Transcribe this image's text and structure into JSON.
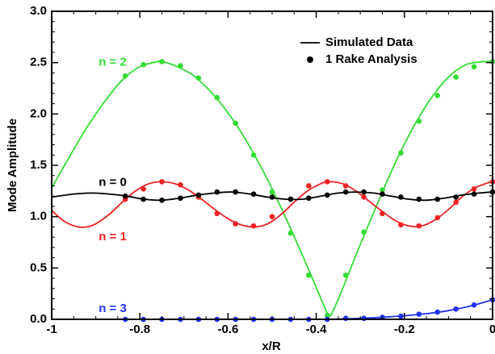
{
  "chart_data": {
    "type": "line",
    "xlabel": "x/R",
    "ylabel": "Mode Amplitude",
    "xlim": [
      -1,
      0
    ],
    "ylim": [
      0,
      3
    ],
    "xticks": [
      "-1",
      "-0.8",
      "-0.6",
      "-0.4",
      "-0.2",
      "0"
    ],
    "yticks": [
      "0.0",
      "0.5",
      "1.0",
      "1.5",
      "2.0",
      "2.5",
      "3.0"
    ],
    "legend": {
      "placement": "top-right",
      "entries": [
        {
          "label": "Simulated Data",
          "marker": "line",
          "color": "#000000"
        },
        {
          "label": "1 Rake Analysis",
          "marker": "dot",
          "color": "#000000"
        }
      ]
    },
    "series": [
      {
        "name": "n = 2",
        "color": "#33dd33",
        "points_x": [
          -0.833,
          -0.792,
          -0.75,
          -0.708,
          -0.667,
          -0.625,
          -0.583,
          -0.542,
          -0.5,
          -0.458,
          -0.417,
          -0.375,
          -0.333,
          -0.292,
          -0.25,
          -0.208,
          -0.167,
          -0.125,
          -0.083,
          -0.042,
          0.0
        ],
        "points_y": [
          2.37,
          2.48,
          2.51,
          2.47,
          2.35,
          2.16,
          1.91,
          1.6,
          1.24,
          0.84,
          0.43,
          0.04,
          0.43,
          0.85,
          1.26,
          1.62,
          1.93,
          2.18,
          2.36,
          2.46,
          2.51
        ],
        "curve_x": [
          -1.0,
          -0.96,
          -0.92,
          -0.88,
          -0.84,
          -0.8,
          -0.76,
          -0.75,
          -0.72,
          -0.68,
          -0.64,
          -0.6,
          -0.56,
          -0.52,
          -0.48,
          -0.44,
          -0.4,
          -0.38,
          -0.37,
          -0.36,
          -0.34,
          -0.3,
          -0.26,
          -0.22,
          -0.18,
          -0.14,
          -0.1,
          -0.06,
          -0.02,
          0.0
        ],
        "curve_y": [
          1.28,
          1.58,
          1.87,
          2.12,
          2.33,
          2.46,
          2.51,
          2.51,
          2.47,
          2.38,
          2.22,
          2.01,
          1.75,
          1.44,
          1.09,
          0.71,
          0.31,
          0.11,
          0.03,
          0.1,
          0.3,
          0.73,
          1.14,
          1.53,
          1.87,
          2.15,
          2.36,
          2.48,
          2.51,
          2.51
        ],
        "label_x": -0.83,
        "label_y": 2.5
      },
      {
        "name": "n = 1",
        "color": "#ee2222",
        "points_x": [
          -0.833,
          -0.792,
          -0.75,
          -0.708,
          -0.667,
          -0.625,
          -0.583,
          -0.542,
          -0.5,
          -0.458,
          -0.417,
          -0.375,
          -0.333,
          -0.292,
          -0.25,
          -0.208,
          -0.167,
          -0.125,
          -0.083,
          -0.042,
          0.0
        ],
        "points_y": [
          1.17,
          1.27,
          1.34,
          1.31,
          1.19,
          1.03,
          0.93,
          0.91,
          1.0,
          1.17,
          1.3,
          1.34,
          1.3,
          1.19,
          1.03,
          0.92,
          0.91,
          0.99,
          1.14,
          1.27,
          1.34
        ],
        "curve_x": [
          -1.0,
          -0.97,
          -0.94,
          -0.92,
          -0.9,
          -0.87,
          -0.84,
          -0.81,
          -0.78,
          -0.75,
          -0.72,
          -0.69,
          -0.66,
          -0.63,
          -0.6,
          -0.57,
          -0.54,
          -0.51,
          -0.48,
          -0.45,
          -0.42,
          -0.39,
          -0.37,
          -0.34,
          -0.31,
          -0.28,
          -0.25,
          -0.22,
          -0.19,
          -0.16,
          -0.13,
          -0.1,
          -0.07,
          -0.04,
          -0.01,
          0.0
        ],
        "curve_y": [
          1.06,
          0.95,
          0.9,
          0.9,
          0.93,
          1.02,
          1.14,
          1.25,
          1.32,
          1.34,
          1.32,
          1.26,
          1.17,
          1.07,
          0.98,
          0.92,
          0.9,
          0.93,
          1.02,
          1.14,
          1.25,
          1.32,
          1.34,
          1.32,
          1.25,
          1.15,
          1.05,
          0.96,
          0.91,
          0.91,
          0.97,
          1.07,
          1.19,
          1.28,
          1.33,
          1.34
        ],
        "label_x": -0.83,
        "label_y": 0.8
      },
      {
        "name": "n = 0",
        "color": "#000000",
        "points_x": [
          -0.833,
          -0.792,
          -0.75,
          -0.708,
          -0.667,
          -0.625,
          -0.583,
          -0.542,
          -0.5,
          -0.458,
          -0.417,
          -0.375,
          -0.333,
          -0.292,
          -0.25,
          -0.208,
          -0.167,
          -0.125,
          -0.083,
          -0.042,
          0.0
        ],
        "points_y": [
          1.2,
          1.17,
          1.16,
          1.18,
          1.21,
          1.24,
          1.24,
          1.22,
          1.19,
          1.17,
          1.18,
          1.21,
          1.24,
          1.24,
          1.22,
          1.19,
          1.17,
          1.17,
          1.19,
          1.22,
          1.24
        ],
        "curve_x": [
          -1.0,
          -0.95,
          -0.91,
          -0.87,
          -0.83,
          -0.79,
          -0.75,
          -0.71,
          -0.67,
          -0.63,
          -0.59,
          -0.55,
          -0.51,
          -0.47,
          -0.43,
          -0.39,
          -0.35,
          -0.31,
          -0.27,
          -0.23,
          -0.19,
          -0.15,
          -0.11,
          -0.07,
          -0.03,
          0.0
        ],
        "curve_y": [
          1.19,
          1.22,
          1.23,
          1.22,
          1.2,
          1.17,
          1.16,
          1.18,
          1.21,
          1.23,
          1.24,
          1.22,
          1.19,
          1.17,
          1.17,
          1.2,
          1.23,
          1.24,
          1.23,
          1.2,
          1.17,
          1.16,
          1.18,
          1.21,
          1.23,
          1.24
        ],
        "label_x": -0.83,
        "label_y": 1.33
      },
      {
        "name": "n = 3",
        "color": "#2233ee",
        "points_x": [
          -0.833,
          -0.792,
          -0.75,
          -0.708,
          -0.667,
          -0.625,
          -0.583,
          -0.542,
          -0.5,
          -0.458,
          -0.417,
          -0.375,
          -0.333,
          -0.292,
          -0.25,
          -0.208,
          -0.167,
          -0.125,
          -0.083,
          -0.042,
          0.0
        ],
        "points_y": [
          0.0,
          0.0,
          0.0,
          0.0,
          0.0,
          0.0,
          0.0,
          0.0,
          0.0,
          0.0,
          0.0,
          0.0,
          0.01,
          0.01,
          0.02,
          0.03,
          0.05,
          0.07,
          0.1,
          0.14,
          0.19
        ],
        "curve_x": [
          -0.83,
          -0.7,
          -0.6,
          -0.5,
          -0.45,
          -0.4,
          -0.35,
          -0.3,
          -0.25,
          -0.2,
          -0.15,
          -0.1,
          -0.05,
          0.0
        ],
        "curve_y": [
          0.0,
          0.0,
          0.0,
          0.0,
          0.0,
          0.0,
          0.003,
          0.01,
          0.02,
          0.035,
          0.055,
          0.085,
          0.13,
          0.19
        ],
        "label_x": -0.83,
        "label_y": 0.1
      }
    ]
  }
}
